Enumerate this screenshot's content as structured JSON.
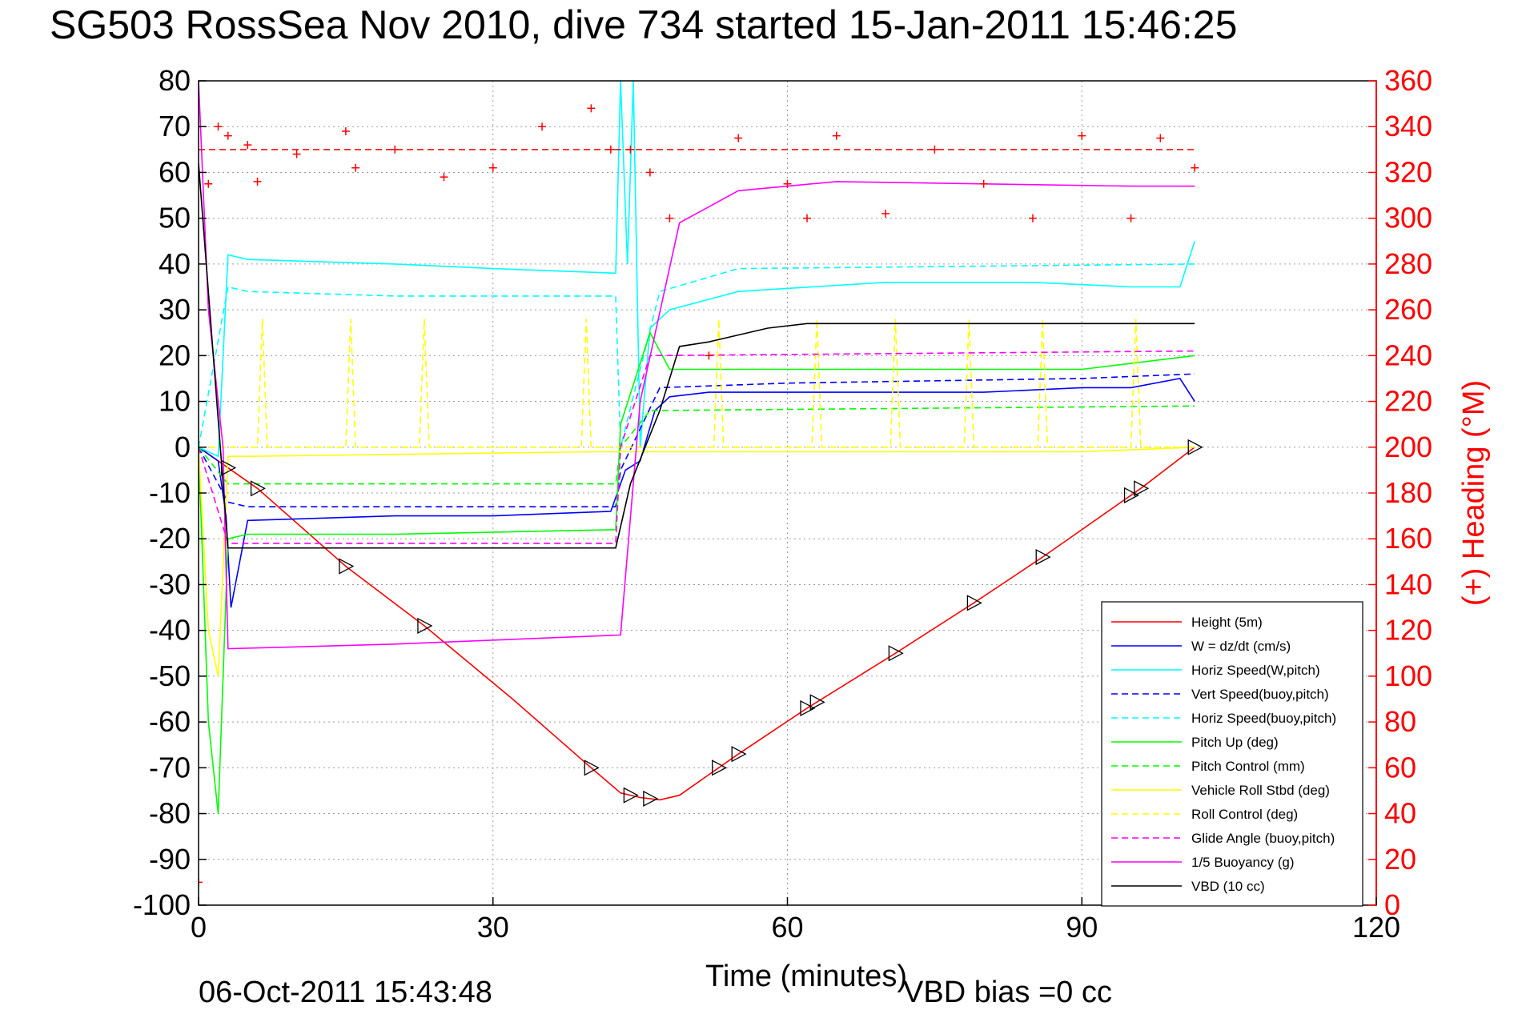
{
  "chart_data": {
    "type": "line",
    "title": "SG503 RossSea Nov 2010, dive 734 started 15-Jan-2011 15:46:25",
    "xlabel": "Time (minutes)",
    "ylabel_right": "(+) Heading (°M)",
    "xlim": [
      0,
      120
    ],
    "ylim": [
      -100,
      80
    ],
    "ylim_right": [
      0,
      360
    ],
    "x_ticks": [
      "0",
      "30",
      "60",
      "90",
      "120"
    ],
    "y_ticks": [
      "80",
      "70",
      "60",
      "50",
      "40",
      "30",
      "20",
      "10",
      "0",
      "-10",
      "-20",
      "-30",
      "-40",
      "-50",
      "-60",
      "-70",
      "-80",
      "-90",
      "-100"
    ],
    "y_ticks_right": [
      "360",
      "340",
      "320",
      "300",
      "280",
      "260",
      "240",
      "220",
      "200",
      "180",
      "160",
      "140",
      "120",
      "100",
      "80",
      "60",
      "40",
      "20",
      "0"
    ],
    "grid": true,
    "legend_position": "bottom-right",
    "colors": {
      "right_axis": "#ff0000"
    },
    "series": [
      {
        "name": "Height (5m)",
        "color": "#ff0000",
        "style": "solid",
        "x": [
          0,
          6,
          15,
          23,
          32,
          40,
          43,
          45,
          47,
          49,
          53,
          55,
          62,
          71,
          79,
          86,
          96,
          101.5
        ],
        "y": [
          0,
          -9,
          -26,
          -39,
          -55,
          -70,
          -75.5,
          -76.5,
          -77,
          -76,
          -70,
          -67,
          -57,
          -45,
          -34,
          -24,
          -9,
          0
        ]
      },
      {
        "name": "W = dz/dt (cm/s)",
        "color": "#0000ff",
        "style": "solid",
        "x": [
          0,
          2,
          2.8,
          3.3,
          5,
          20,
          30,
          42,
          43.5,
          45,
          46.5,
          48,
          52,
          60,
          70,
          80,
          90,
          95,
          100,
          101.5
        ],
        "y": [
          0,
          -3,
          -15,
          -35,
          -16,
          -15,
          -15,
          -14,
          -5,
          -3,
          8,
          11,
          12,
          12,
          12,
          12,
          13,
          13,
          15,
          10
        ]
      },
      {
        "name": "Horiz Speed(W,pitch)",
        "color": "#00ffff",
        "style": "solid",
        "x": [
          0,
          2,
          3,
          5,
          20,
          30,
          42.5,
          43,
          43.7,
          44.3,
          45,
          46,
          48,
          55,
          70,
          85,
          95,
          100,
          101.5
        ],
        "y": [
          0,
          -2,
          42,
          41,
          40,
          39,
          38,
          80,
          40,
          80,
          0,
          26,
          30,
          34,
          36,
          36,
          35,
          35,
          45
        ]
      },
      {
        "name": "Vert Speed(buoy,pitch)",
        "color": "#0000ff",
        "style": "dashed",
        "x": [
          0,
          3,
          5,
          20,
          42.5,
          43,
          47,
          60,
          90,
          101.5
        ],
        "y": [
          0,
          -12,
          -13,
          -13,
          -13,
          -5,
          13,
          14,
          15,
          16
        ]
      },
      {
        "name": "Horiz Speed(buoy,pitch)",
        "color": "#00ffff",
        "style": "dashed",
        "x": [
          0,
          3,
          5,
          20,
          42.5,
          43,
          47,
          55,
          101.5
        ],
        "y": [
          0,
          35,
          34,
          33,
          33,
          0,
          34,
          39,
          40
        ]
      },
      {
        "name": "Pitch Up (deg)",
        "color": "#00ff00",
        "style": "solid",
        "x": [
          0,
          1,
          2,
          3,
          5,
          20,
          42.5,
          43,
          46,
          48,
          60,
          90,
          101.5
        ],
        "y": [
          0,
          -60,
          -80,
          -20,
          -19,
          -19,
          -18,
          5,
          25,
          17,
          17,
          17,
          20
        ]
      },
      {
        "name": "Pitch Control (mm)",
        "color": "#00ff00",
        "style": "dashed",
        "x": [
          0,
          3,
          42.5,
          43,
          46,
          101.5
        ],
        "y": [
          0,
          -8,
          -8,
          0,
          8,
          9
        ]
      },
      {
        "name": "Vehicle Roll Stbd (deg)",
        "color": "#ffff00",
        "style": "solid",
        "x": [
          0,
          1,
          2,
          3,
          5,
          40,
          60,
          90,
          101.5
        ],
        "y": [
          0,
          -40,
          -50,
          -2,
          -2,
          -1,
          -1,
          -1,
          0
        ]
      },
      {
        "name": "Roll Control (deg)",
        "color": "#ffff00",
        "style": "dashed",
        "x": [
          0,
          6,
          6.5,
          7,
          15,
          15.5,
          16,
          22.5,
          23,
          23.5,
          39,
          39.5,
          40,
          52.5,
          53,
          53.5,
          62.5,
          63,
          63.5,
          70.5,
          71,
          71.5,
          78,
          78.5,
          79,
          85.5,
          86,
          86.5,
          95,
          95.5,
          96,
          101.5
        ],
        "y": [
          0,
          0,
          28,
          0,
          0,
          28,
          0,
          0,
          28,
          0,
          0,
          28,
          0,
          0,
          28,
          0,
          0,
          28,
          0,
          0,
          28,
          0,
          0,
          28,
          0,
          0,
          28,
          0,
          0,
          28,
          0,
          0
        ]
      },
      {
        "name": "Glide Angle (buoy,pitch)",
        "color": "#ff00ff",
        "style": "dashed",
        "x": [
          0,
          3,
          42.5,
          43,
          46,
          101.5
        ],
        "y": [
          0,
          -21,
          -21,
          0,
          20,
          21
        ]
      },
      {
        "name": "1/5 Buoyancy (g)",
        "color": "#ff00ff",
        "style": "solid",
        "x": [
          0,
          1,
          2.5,
          3,
          20,
          43,
          45,
          49,
          55,
          65,
          95,
          101.5
        ],
        "y": [
          80,
          30,
          0,
          -44,
          -43,
          -41,
          10,
          49,
          56,
          58,
          57,
          57
        ]
      },
      {
        "name": "VBD (10 cc)",
        "color": "#000000",
        "style": "solid",
        "x": [
          0,
          3,
          42.5,
          44,
          47,
          49,
          52,
          58,
          62,
          101.5
        ],
        "y": [
          62,
          -22,
          -22,
          -8,
          8,
          22,
          23,
          26,
          27,
          27
        ]
      }
    ],
    "heading": {
      "name": "(+) Heading (°M)",
      "color": "#ff0000",
      "axis": "right",
      "marker": "+",
      "reference_level": 330,
      "x": [
        0,
        1,
        2,
        3,
        5,
        6,
        10,
        15,
        16,
        20,
        25,
        30,
        35,
        40,
        42,
        44,
        46,
        48,
        52,
        55,
        60,
        62,
        65,
        70,
        75,
        80,
        85,
        90,
        95,
        98,
        101.5
      ],
      "y": [
        10,
        315,
        340,
        336,
        332,
        316,
        328,
        338,
        322,
        330,
        318,
        322,
        340,
        348,
        330,
        330,
        320,
        300,
        240,
        335,
        315,
        300,
        336,
        302,
        330,
        315,
        300,
        336,
        300,
        335,
        322
      ]
    },
    "triangle_markers_x": [
      3,
      6,
      15,
      23,
      40,
      44,
      46,
      53,
      55,
      62,
      63,
      71,
      79,
      86,
      95,
      96,
      101.5
    ]
  },
  "footer": {
    "timestamp": "06-Oct-2011 15:43:48",
    "vbd_bias": "VBD bias =0 cc"
  }
}
